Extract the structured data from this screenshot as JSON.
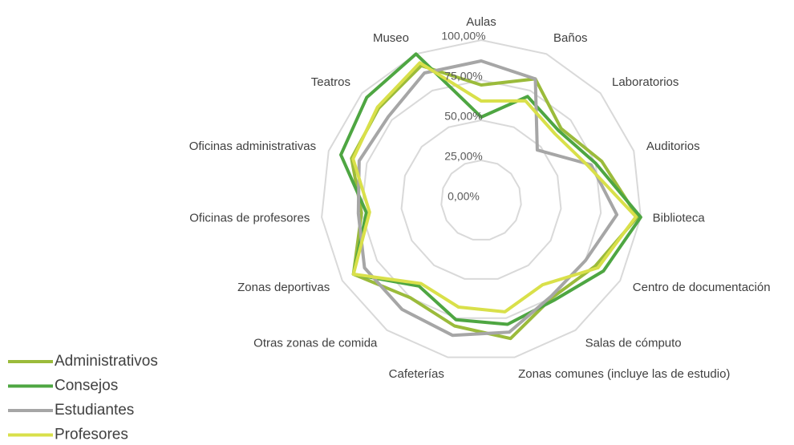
{
  "chart_data": {
    "type": "radar",
    "categories": [
      "Aulas",
      "Baños",
      "Laboratorios",
      "Auditorios",
      "Biblioteca",
      "Centro de documentación",
      "Salas de cómputo",
      "Zonas comunes (incluye las de estudio)",
      "Cafeterías",
      "Otras zonas de comida",
      "Zonas deportivas",
      "Oficinas de profesores",
      "Oficinas administrativas",
      "Teatros",
      "Museo"
    ],
    "series": [
      {
        "name": "Administrativos",
        "color": "#9bbb3b",
        "values": [
          72,
          83,
          67,
          79,
          98,
          82,
          75,
          88,
          80,
          75,
          92,
          75,
          85,
          86,
          92
        ]
      },
      {
        "name": "Consejos",
        "color": "#4ea642",
        "values": [
          52,
          71,
          65,
          75,
          100,
          88,
          77,
          79,
          76,
          66,
          92,
          72,
          92,
          96,
          100
        ]
      },
      {
        "name": "Estudiantes",
        "color": "#a6a6a6",
        "values": [
          87,
          83,
          47,
          72,
          85,
          75,
          74,
          84,
          86,
          84,
          84,
          77,
          80,
          78,
          87
        ]
      },
      {
        "name": "Profesores",
        "color": "#d9e04a",
        "values": [
          62,
          68,
          62,
          70,
          97,
          84,
          65,
          71,
          68,
          64,
          92,
          70,
          84,
          87,
          94
        ]
      }
    ],
    "ylim": [
      0,
      100
    ],
    "yticks": [
      {
        "value": 0,
        "label": "0,00%"
      },
      {
        "value": 25,
        "label": "25,00%"
      },
      {
        "value": 50,
        "label": "50,00%"
      },
      {
        "value": 75,
        "label": "75,00%"
      },
      {
        "value": 100,
        "label": "100,00%"
      }
    ],
    "grid": true
  }
}
